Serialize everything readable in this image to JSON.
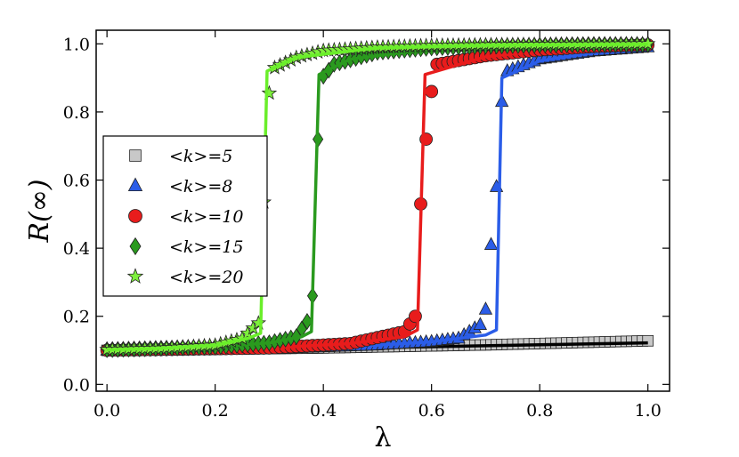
{
  "chart_data": {
    "type": "scatter",
    "xlabel": "λ",
    "ylabel": "R(∞)",
    "xlim": [
      -0.02,
      1.04
    ],
    "ylim": [
      -0.02,
      1.04
    ],
    "xticks": [
      "0.0",
      "0.2",
      "0.4",
      "0.6",
      "0.8",
      "1.0"
    ],
    "yticks": [
      "0.0",
      "0.2",
      "0.4",
      "0.6",
      "0.8",
      "1.0"
    ],
    "grid": false,
    "legend_position": "left",
    "series": [
      {
        "name": "<k>=5",
        "marker": "square",
        "color": "#c8c8c8",
        "line_color": "#000000",
        "points": [
          [
            0.0,
            0.1
          ],
          [
            0.1,
            0.101
          ],
          [
            0.2,
            0.103
          ],
          [
            0.3,
            0.105
          ],
          [
            0.4,
            0.107
          ],
          [
            0.5,
            0.11
          ],
          [
            0.6,
            0.113
          ],
          [
            0.7,
            0.116
          ],
          [
            0.8,
            0.12
          ],
          [
            0.9,
            0.124
          ],
          [
            1.0,
            0.128
          ]
        ],
        "curve": [
          [
            0.0,
            0.098
          ],
          [
            0.5,
            0.108
          ],
          [
            1.0,
            0.122
          ]
        ]
      },
      {
        "name": "<k>=8",
        "marker": "triangle",
        "color": "#2b5de8",
        "line_color": "#2b5de8",
        "points": [
          [
            0.0,
            0.1
          ],
          [
            0.3,
            0.104
          ],
          [
            0.5,
            0.115
          ],
          [
            0.6,
            0.125
          ],
          [
            0.65,
            0.135
          ],
          [
            0.69,
            0.175
          ],
          [
            0.7,
            0.22
          ],
          [
            0.71,
            0.41
          ],
          [
            0.72,
            0.58
          ],
          [
            0.73,
            0.83
          ],
          [
            0.74,
            0.92
          ],
          [
            0.8,
            0.955
          ],
          [
            0.9,
            0.978
          ],
          [
            1.0,
            0.99
          ]
        ],
        "curve": [
          [
            0.0,
            0.1
          ],
          [
            0.3,
            0.104
          ],
          [
            0.5,
            0.115
          ],
          [
            0.6,
            0.125
          ],
          [
            0.7,
            0.145
          ],
          [
            0.72,
            0.16
          ],
          [
            0.73,
            0.9
          ],
          [
            0.8,
            0.95
          ],
          [
            0.9,
            0.975
          ],
          [
            1.0,
            0.987
          ]
        ]
      },
      {
        "name": "<k>=10",
        "marker": "circle",
        "color": "#e81c1c",
        "line_color": "#e81c1c",
        "points": [
          [
            0.0,
            0.1
          ],
          [
            0.3,
            0.107
          ],
          [
            0.45,
            0.12
          ],
          [
            0.55,
            0.155
          ],
          [
            0.57,
            0.2
          ],
          [
            0.58,
            0.53
          ],
          [
            0.59,
            0.72
          ],
          [
            0.6,
            0.86
          ],
          [
            0.61,
            0.94
          ],
          [
            0.7,
            0.965
          ],
          [
            0.8,
            0.982
          ],
          [
            0.9,
            0.992
          ],
          [
            1.0,
            0.997
          ]
        ],
        "curve": [
          [
            0.0,
            0.1
          ],
          [
            0.3,
            0.107
          ],
          [
            0.45,
            0.12
          ],
          [
            0.55,
            0.14
          ],
          [
            0.574,
            0.16
          ],
          [
            0.588,
            0.91
          ],
          [
            0.7,
            0.962
          ],
          [
            0.8,
            0.98
          ],
          [
            0.9,
            0.99
          ],
          [
            1.0,
            0.996
          ]
        ]
      },
      {
        "name": "<k>=15",
        "marker": "diamond",
        "color": "#2a9a1e",
        "line_color": "#2a9a1e",
        "points": [
          [
            0.0,
            0.102
          ],
          [
            0.2,
            0.11
          ],
          [
            0.3,
            0.122
          ],
          [
            0.35,
            0.14
          ],
          [
            0.37,
            0.185
          ],
          [
            0.38,
            0.26
          ],
          [
            0.39,
            0.72
          ],
          [
            0.4,
            0.905
          ],
          [
            0.42,
            0.94
          ],
          [
            0.5,
            0.975
          ],
          [
            0.6,
            0.988
          ],
          [
            0.7,
            0.993
          ],
          [
            0.8,
            0.996
          ],
          [
            0.9,
            0.998
          ],
          [
            1.0,
            0.998
          ]
        ],
        "curve": [
          [
            0.0,
            0.102
          ],
          [
            0.2,
            0.11
          ],
          [
            0.3,
            0.122
          ],
          [
            0.36,
            0.14
          ],
          [
            0.378,
            0.155
          ],
          [
            0.392,
            0.91
          ],
          [
            0.45,
            0.955
          ],
          [
            0.6,
            0.985
          ],
          [
            0.8,
            0.995
          ],
          [
            1.0,
            0.998
          ]
        ]
      },
      {
        "name": "<k>=20",
        "marker": "star",
        "color": "#7ef03c",
        "line_color": "#6aee2a",
        "points": [
          [
            0.0,
            0.102
          ],
          [
            0.1,
            0.106
          ],
          [
            0.2,
            0.115
          ],
          [
            0.25,
            0.135
          ],
          [
            0.28,
            0.18
          ],
          [
            0.29,
            0.535
          ],
          [
            0.3,
            0.855
          ],
          [
            0.31,
            0.93
          ],
          [
            0.35,
            0.96
          ],
          [
            0.4,
            0.98
          ],
          [
            0.5,
            0.99
          ],
          [
            0.6,
            0.995
          ],
          [
            0.7,
            0.997
          ],
          [
            0.8,
            0.998
          ],
          [
            0.9,
            0.999
          ],
          [
            1.0,
            1.0
          ]
        ],
        "curve": [
          [
            0.0,
            0.102
          ],
          [
            0.1,
            0.106
          ],
          [
            0.2,
            0.115
          ],
          [
            0.26,
            0.135
          ],
          [
            0.284,
            0.15
          ],
          [
            0.296,
            0.92
          ],
          [
            0.35,
            0.96
          ],
          [
            0.5,
            0.988
          ],
          [
            0.7,
            0.996
          ],
          [
            1.0,
            0.999
          ]
        ]
      }
    ]
  }
}
